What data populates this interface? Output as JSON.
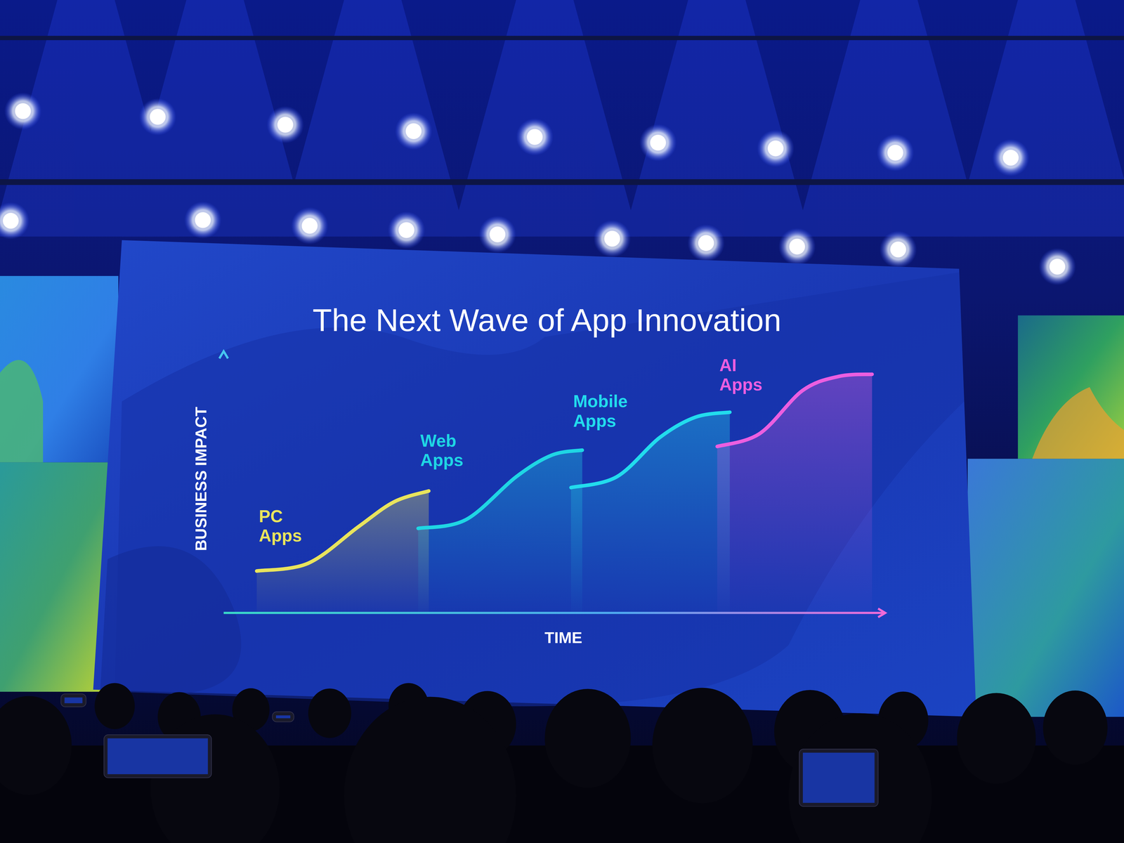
{
  "chart_data": {
    "type": "line",
    "title": "The Next Wave of App Innovation",
    "x_label": "TIME",
    "y_label": "BUSINESS IMPACT",
    "xlim": [
      0,
      100
    ],
    "ylim": [
      0,
      100
    ],
    "tick_labels": false,
    "grid": false,
    "series": [
      {
        "name": "PC Apps",
        "color": "#e9e45c",
        "x": [
          5,
          12.8,
          20.4,
          25.8,
          31
        ],
        "values": [
          16,
          19,
          33,
          42.5,
          46.6
        ]
      },
      {
        "name": "Web Apps",
        "color": "#1fd6e4",
        "x": [
          29.4,
          36.6,
          44.2,
          49.6,
          54.2
        ],
        "values": [
          32.3,
          35.6,
          52,
          60.3,
          62.2
        ]
      },
      {
        "name": "Mobile Apps",
        "color": "#22dced",
        "x": [
          52.5,
          59.4,
          65.9,
          71.3,
          76.5
        ],
        "values": [
          47.9,
          52,
          67,
          74.8,
          76.7
        ]
      },
      {
        "name": "AI Apps",
        "color": "#ec5ee0",
        "x": [
          74.6,
          81,
          87.5,
          93,
          98
        ],
        "values": [
          63.6,
          68.5,
          85,
          90.4,
          91.2
        ]
      }
    ]
  }
}
